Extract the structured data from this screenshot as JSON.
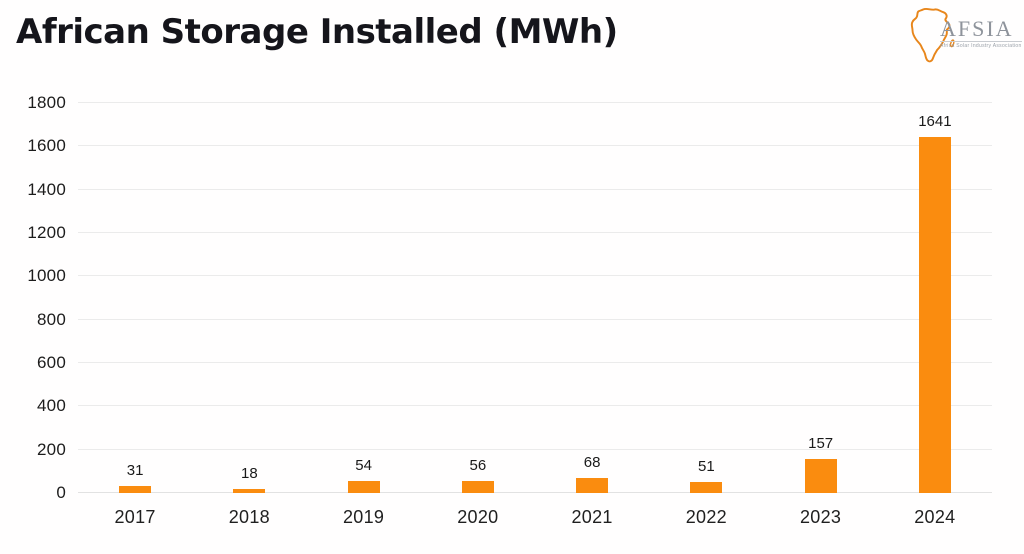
{
  "header": {
    "title": "African Storage Installed (MWh)",
    "logo": {
      "name": "AFSIA",
      "tagline": "Africa Solar Industry Association"
    }
  },
  "chart_data": {
    "type": "bar",
    "title": "African Storage Installed (MWh)",
    "categories": [
      "2017",
      "2018",
      "2019",
      "2020",
      "2021",
      "2022",
      "2023",
      "2024"
    ],
    "values": [
      31,
      18,
      54,
      56,
      68,
      51,
      157,
      1641
    ],
    "xlabel": "",
    "ylabel": "",
    "ylim": [
      0,
      1800
    ],
    "ytick_step": 200,
    "grid": true,
    "legend_position": "none",
    "value_labels": true,
    "bar_color": "#FA8C0F"
  },
  "colors": {
    "accent_orange": "#FA8C0F",
    "title_text": "#15151b",
    "axis_text": "#1c1c1c",
    "gridline": "#ebebeb",
    "logo_gray": "#8e939b",
    "background": "#fffefe"
  }
}
